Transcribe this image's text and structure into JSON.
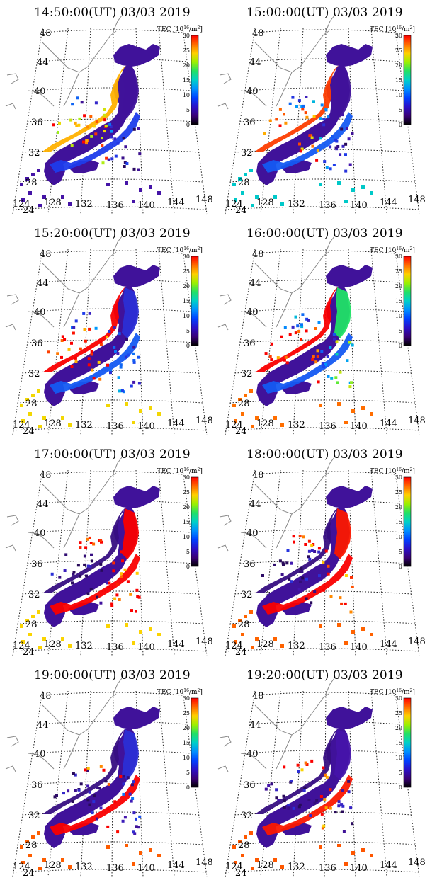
{
  "figure": {
    "colorbar": {
      "label": "TEC [10",
      "label_exp": "16",
      "label_unit": "/m",
      "label_unit_exp": "2",
      "label_close": "]",
      "ticks": [
        "30",
        "25",
        "20",
        "15",
        "10",
        "5",
        "0"
      ],
      "colors": [
        "#ff0000",
        "#ff6a00",
        "#ffd000",
        "#9cf000",
        "#22e066",
        "#00d0c8",
        "#0090ff",
        "#0040ff",
        "#2a10c8",
        "#3a0078",
        "#000000"
      ]
    },
    "lat_labels": [
      "48",
      "44",
      "40",
      "36",
      "32",
      "28",
      "24"
    ],
    "lon_labels": [
      "124",
      "128",
      "132",
      "136",
      "140",
      "144",
      "148"
    ],
    "panels": [
      {
        "title": "14:50:00(UT)  03/03 2019",
        "west_level": 0.85,
        "east_level": 0.08,
        "pacific_level": 0.25,
        "islands_level": 0.2
      },
      {
        "title": "15:00:00(UT)  03/03 2019",
        "west_level": 0.95,
        "east_level": 0.08,
        "pacific_level": 0.3,
        "islands_level": 0.6
      },
      {
        "title": "15:20:00(UT)  03/03 2019",
        "west_level": 1.0,
        "east_level": 0.2,
        "pacific_level": 0.3,
        "islands_level": 0.9
      },
      {
        "title": "16:00:00(UT)  03/03 2019",
        "west_level": 1.0,
        "east_level": 0.6,
        "pacific_level": 0.3,
        "islands_level": 1.0
      },
      {
        "title": "17:00:00(UT)  03/03 2019",
        "west_level": 0.05,
        "east_level": 1.0,
        "pacific_level": 1.0,
        "islands_level": 0.9
      },
      {
        "title": "18:00:00(UT)  03/03 2019",
        "west_level": 0.05,
        "east_level": 0.98,
        "pacific_level": 1.0,
        "islands_level": 1.0
      },
      {
        "title": "19:00:00(UT)  03/03 2019",
        "west_level": 0.05,
        "east_level": 0.2,
        "pacific_level": 1.0,
        "islands_level": 1.0
      },
      {
        "title": "19:20:00(UT)  03/03 2019",
        "west_level": 0.05,
        "east_level": 0.1,
        "pacific_level": 0.98,
        "islands_level": 1.0
      }
    ]
  }
}
